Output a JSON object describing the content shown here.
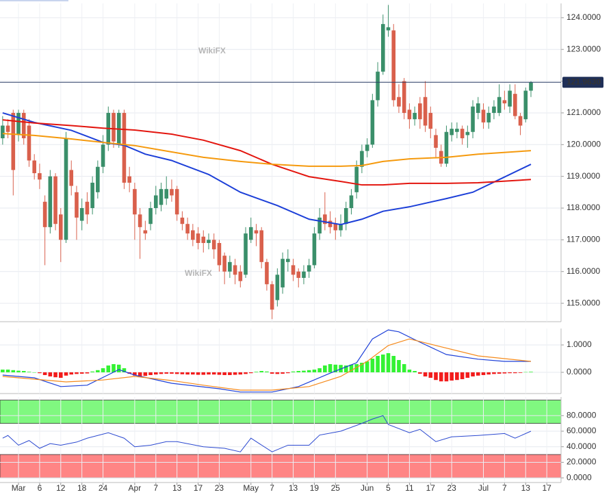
{
  "chart_data": [
    {
      "type": "candlestick",
      "watermark": "WikiFX",
      "xlim": [
        -3.5,
        102.7
      ],
      "ylim": [
        114.42,
        124.45
      ],
      "yticks": [
        {
          "value": 124,
          "label": "124.0000"
        },
        {
          "value": 123,
          "label": "123.0000"
        },
        {
          "value": 122,
          "label": "122.0000"
        },
        {
          "value": 121,
          "label": "121.0000"
        },
        {
          "value": 120,
          "label": "120.0000"
        },
        {
          "value": 119,
          "label": "119.0000"
        },
        {
          "value": 118,
          "label": "118.0000"
        },
        {
          "value": 117,
          "label": "117.0000"
        },
        {
          "value": 116,
          "label": "116.0000"
        },
        {
          "value": 115,
          "label": "115.0000"
        }
      ],
      "up_color": "#3a8f6a",
      "down_color": "#d9604c",
      "last_price": {
        "value": 121.963,
        "label": "121.9630"
      },
      "x": [
        -3,
        -2,
        -1,
        0,
        1,
        2,
        3,
        4,
        5,
        6,
        7,
        8,
        9,
        10,
        11,
        12,
        13,
        14,
        15,
        16,
        17,
        18,
        19,
        20,
        21,
        22,
        23,
        24,
        25,
        26,
        27,
        28,
        29,
        30,
        31,
        32,
        33,
        34,
        35,
        36,
        37,
        38,
        39,
        40,
        41,
        42,
        43,
        44,
        45,
        46,
        47,
        48,
        49,
        50,
        51,
        52,
        53,
        54,
        55,
        56,
        57,
        58,
        59,
        60,
        61,
        62,
        63,
        64,
        65,
        66,
        67,
        68,
        69,
        70,
        71,
        72,
        73,
        74,
        75,
        76,
        77,
        78,
        79,
        80,
        81,
        82,
        83,
        84,
        85,
        86,
        87,
        88,
        89,
        90,
        91,
        92,
        93,
        94,
        95,
        96,
        97
      ],
      "open": [
        120.2,
        120.6,
        121.0,
        120.3,
        121.0,
        120.6,
        119.5,
        119.1,
        118.2,
        117.4,
        119.0,
        117.8,
        117.0,
        119.2,
        118.5,
        117.6,
        118.2,
        118.0,
        118.5,
        119.3,
        120.0,
        121.0,
        120.0,
        121.0,
        119.0,
        118.6,
        117.8,
        117.3,
        117.5,
        118.0,
        118.1,
        118.3,
        118.6,
        118.6,
        117.7,
        117.5,
        117.3,
        117.2,
        117.1,
        116.9,
        117.0,
        116.9,
        116.5,
        116.0,
        116.2,
        116.0,
        115.9,
        117.0,
        117.3,
        117.3,
        116.3,
        115.6,
        115.1,
        115.5,
        116.3,
        116.2,
        116.0,
        115.8,
        116.0,
        116.2,
        117.2,
        117.8,
        117.6,
        117.5,
        117.3,
        117.5,
        118.0,
        118.5,
        119.3,
        119.8,
        120.0,
        121.4,
        122.3,
        123.6,
        123.6,
        121.5,
        122.0,
        121.1,
        120.8,
        121.3,
        121.5,
        121.0,
        120.3,
        119.8,
        119.4,
        120.3,
        120.4,
        120.5,
        120.3,
        120.4,
        121.0,
        121.1,
        120.7,
        121.0,
        121.0,
        121.4,
        121.2,
        121.6,
        120.9,
        120.8,
        121.7
      ],
      "high": [
        120.9,
        120.8,
        121.1,
        121.1,
        121.1,
        120.8,
        119.7,
        119.4,
        118.4,
        119.2,
        119.1,
        118.0,
        120.4,
        119.5,
        118.7,
        118.3,
        118.5,
        119.0,
        119.5,
        120.3,
        121.2,
        121.1,
        121.1,
        121.1,
        119.3,
        118.8,
        118.0,
        117.6,
        118.2,
        118.7,
        118.8,
        119.0,
        118.9,
        118.7,
        117.9,
        117.7,
        117.5,
        117.4,
        117.3,
        117.2,
        117.2,
        117.0,
        116.6,
        116.5,
        116.4,
        116.2,
        117.4,
        117.7,
        117.5,
        117.4,
        116.4,
        115.7,
        116.1,
        116.6,
        116.7,
        116.4,
        116.1,
        116.2,
        116.4,
        117.4,
        118.0,
        118.5,
        117.9,
        117.7,
        117.8,
        118.2,
        118.6,
        119.5,
        120.0,
        120.2,
        121.6,
        122.6,
        124.1,
        124.4,
        123.8,
        121.9,
        122.1,
        121.3,
        121.2,
        121.5,
        122.0,
        121.2,
        120.5,
        120.0,
        120.6,
        120.7,
        120.7,
        120.6,
        120.6,
        121.4,
        121.5,
        121.3,
        121.2,
        121.4,
        121.9,
        121.7,
        121.9,
        121.9,
        121.0,
        121.8,
        122.0
      ],
      "low": [
        120.0,
        120.2,
        118.4,
        120.1,
        120.0,
        119.3,
        118.9,
        118.6,
        116.2,
        117.2,
        117.3,
        116.3,
        116.9,
        118.4,
        117.0,
        117.3,
        117.5,
        117.8,
        118.3,
        119.1,
        119.8,
        119.9,
        119.9,
        118.6,
        118.5,
        117.0,
        116.4,
        117.0,
        117.3,
        117.8,
        117.9,
        118.1,
        118.2,
        117.6,
        117.3,
        117.0,
        116.8,
        116.7,
        116.6,
        116.7,
        116.4,
        116.0,
        115.6,
        115.8,
        115.6,
        115.5,
        115.8,
        116.9,
        116.8,
        116.1,
        115.4,
        114.5,
        114.9,
        115.3,
        116.0,
        115.7,
        115.5,
        115.6,
        115.8,
        116.1,
        117.0,
        117.3,
        117.2,
        117.0,
        117.1,
        117.3,
        117.8,
        118.3,
        119.1,
        119.6,
        119.9,
        121.2,
        122.2,
        123.4,
        121.2,
        121.0,
        120.8,
        120.5,
        120.6,
        120.5,
        120.4,
        120.2,
        119.6,
        119.3,
        119.3,
        120.1,
        120.2,
        120.0,
        119.9,
        120.2,
        120.8,
        120.5,
        120.5,
        120.8,
        120.9,
        121.1,
        121.0,
        120.8,
        120.3,
        120.7,
        121.5
      ],
      "close": [
        120.6,
        120.4,
        119.2,
        121.0,
        120.2,
        119.5,
        119.1,
        118.9,
        117.4,
        119.0,
        117.5,
        117.0,
        120.2,
        118.7,
        117.7,
        118.0,
        117.8,
        118.8,
        119.3,
        120.0,
        121.0,
        120.1,
        121.0,
        118.8,
        118.8,
        117.8,
        117.4,
        117.2,
        118.0,
        118.4,
        118.6,
        118.6,
        118.4,
        117.8,
        117.5,
        117.2,
        117.0,
        116.9,
        116.9,
        117.0,
        116.7,
        116.2,
        116.0,
        116.3,
        115.9,
        115.7,
        117.2,
        117.4,
        117.2,
        116.3,
        115.6,
        114.8,
        115.9,
        116.4,
        116.4,
        115.9,
        115.8,
        116.0,
        116.2,
        117.2,
        117.7,
        117.5,
        117.4,
        117.3,
        117.5,
        118.0,
        118.4,
        119.3,
        119.8,
        120.0,
        121.4,
        122.3,
        123.8,
        123.7,
        121.4,
        121.2,
        121.0,
        120.8,
        121.0,
        120.8,
        120.6,
        120.5,
        119.9,
        119.4,
        120.4,
        120.5,
        120.5,
        120.2,
        120.4,
        121.2,
        121.3,
        120.7,
        121.0,
        121.2,
        121.5,
        121.3,
        121.7,
        120.9,
        120.6,
        121.7,
        121.963
      ],
      "lines": [
        {
          "color": "#1c3fd8",
          "x": [
            -3,
            3,
            10,
            16,
            20,
            24,
            29,
            36,
            42,
            49,
            55,
            61,
            65,
            69,
            74,
            81,
            86,
            91,
            97
          ],
          "values": [
            121.0,
            120.7,
            120.45,
            120.07,
            119.98,
            119.7,
            119.5,
            119.06,
            118.5,
            118.08,
            117.65,
            117.48,
            117.65,
            117.9,
            118.04,
            118.3,
            118.5,
            118.9,
            119.38
          ]
        },
        {
          "color": "#e3150e",
          "x": [
            -3,
            3,
            10,
            16,
            22,
            29,
            35,
            42,
            48,
            55,
            61,
            65,
            69,
            74,
            81,
            87,
            97
          ],
          "values": [
            120.78,
            120.68,
            120.6,
            120.52,
            120.46,
            120.33,
            120.14,
            119.81,
            119.38,
            118.99,
            118.84,
            118.73,
            118.73,
            118.78,
            118.78,
            118.8,
            118.9
          ]
        },
        {
          "color": "#f5990c",
          "x": [
            -3,
            3,
            10,
            16,
            22,
            29,
            35,
            42,
            48,
            55,
            61,
            65,
            69,
            74,
            81,
            87,
            97
          ],
          "values": [
            120.35,
            120.29,
            120.18,
            120.07,
            119.97,
            119.77,
            119.6,
            119.47,
            119.38,
            119.32,
            119.32,
            119.34,
            119.47,
            119.55,
            119.6,
            119.7,
            119.81
          ]
        }
      ]
    },
    {
      "type": "bar",
      "xlim": [
        -3.5,
        102.7
      ],
      "ylim": [
        -0.775,
        1.6
      ],
      "yticks": [
        {
          "value": 1,
          "label": "1.0000"
        },
        {
          "value": 0,
          "label": "0.0000"
        }
      ],
      "up_color": "#33f233",
      "down_color": "#f21c1c",
      "x": [
        -3,
        -2,
        -1,
        0,
        1,
        2,
        3,
        4,
        5,
        6,
        7,
        8,
        9,
        10,
        11,
        12,
        13,
        14,
        15,
        16,
        17,
        18,
        19,
        20,
        21,
        22,
        23,
        24,
        25,
        26,
        27,
        28,
        29,
        30,
        31,
        32,
        33,
        34,
        35,
        36,
        37,
        38,
        39,
        40,
        41,
        42,
        43,
        44,
        45,
        46,
        47,
        48,
        49,
        50,
        51,
        52,
        53,
        54,
        55,
        56,
        57,
        58,
        59,
        60,
        61,
        62,
        63,
        64,
        65,
        66,
        67,
        68,
        69,
        70,
        71,
        72,
        73,
        74,
        75,
        76,
        77,
        78,
        79,
        80,
        81,
        82,
        83,
        84,
        85,
        86,
        87,
        88,
        89,
        90,
        91,
        92,
        93,
        94,
        95,
        96,
        97
      ],
      "values": [
        0.1,
        0.1,
        0.08,
        0.06,
        0.05,
        0.02,
        0,
        -0.03,
        -0.1,
        -0.15,
        -0.18,
        -0.2,
        -0.12,
        -0.08,
        -0.06,
        -0.05,
        -0.04,
        0.03,
        0.08,
        0.15,
        0.25,
        0.3,
        0.28,
        0.15,
        -0.05,
        -0.12,
        -0.15,
        -0.13,
        -0.1,
        -0.08,
        -0.06,
        -0.05,
        -0.05,
        -0.06,
        -0.07,
        -0.08,
        -0.08,
        -0.09,
        -0.09,
        -0.08,
        -0.08,
        -0.09,
        -0.1,
        -0.1,
        -0.09,
        -0.08,
        -0.06,
        -0.03,
        0.02,
        0.05,
        0.03,
        -0.05,
        -0.06,
        -0.05,
        -0.03,
        0.03,
        0.05,
        0.06,
        0.08,
        0.1,
        0.15,
        0.25,
        0.3,
        0.28,
        0.27,
        0.25,
        0.28,
        0.3,
        0.35,
        0.4,
        0.5,
        0.6,
        0.65,
        0.7,
        0.6,
        0.45,
        0.3,
        0.1,
        0.05,
        -0.05,
        -0.15,
        -0.2,
        -0.28,
        -0.33,
        -0.33,
        -0.3,
        -0.28,
        -0.25,
        -0.2,
        -0.15,
        -0.12,
        -0.1,
        -0.08,
        -0.06,
        -0.05,
        -0.04,
        -0.03,
        -0.03,
        -0.02,
        0.01,
        0.02
      ],
      "lines": [
        {
          "color": "#1c3fd8",
          "x": [
            -3,
            3,
            8,
            13,
            19,
            22,
            29,
            38,
            42,
            48,
            53,
            59,
            64,
            67,
            70,
            72,
            76,
            81,
            87,
            92,
            97
          ],
          "values": [
            -0.1,
            -0.2,
            -0.52,
            -0.47,
            0.1,
            -0.1,
            -0.4,
            -0.6,
            -0.72,
            -0.72,
            -0.52,
            -0.03,
            0.35,
            1.22,
            1.55,
            1.48,
            1.1,
            0.65,
            0.48,
            0.4,
            0.4
          ]
        },
        {
          "color": "#f5891a",
          "x": [
            -3,
            3,
            9,
            16,
            22,
            29,
            35,
            42,
            48,
            55,
            61,
            66,
            70,
            74,
            79,
            87,
            97
          ],
          "values": [
            -0.15,
            -0.25,
            -0.35,
            -0.28,
            -0.15,
            -0.3,
            -0.47,
            -0.65,
            -0.65,
            -0.52,
            -0.15,
            0.4,
            0.98,
            1.22,
            0.98,
            0.6,
            0.4
          ]
        }
      ]
    },
    {
      "type": "line",
      "xlim": [
        -3.5,
        102.7
      ],
      "ylim": [
        -6,
        104
      ],
      "yticks": [
        {
          "value": 80,
          "label": "80.0000"
        },
        {
          "value": 60,
          "label": "60.0000"
        },
        {
          "value": 40,
          "label": "40.0000"
        },
        {
          "value": 20,
          "label": "20.0000"
        },
        {
          "value": 0,
          "label": "0.0000"
        }
      ],
      "zones": [
        {
          "from": 70,
          "to": 100,
          "color": "#80f880"
        },
        {
          "from": 0,
          "to": 30,
          "color": "#ff8585"
        }
      ],
      "color": "#2a48d0",
      "x": [
        -3,
        -2,
        0,
        2,
        4,
        6,
        8,
        11,
        13,
        17,
        20,
        22,
        25,
        28,
        30,
        35,
        39,
        42,
        44,
        48,
        51,
        55,
        57,
        61,
        65,
        67,
        69,
        70,
        74,
        76,
        79,
        82,
        87,
        92,
        94,
        97
      ],
      "values": [
        51,
        54.5,
        42,
        48,
        38,
        44,
        42,
        46,
        51,
        58,
        51,
        40,
        42,
        46.6,
        46.6,
        40,
        38,
        33.4,
        51,
        33.4,
        42,
        42,
        55,
        60,
        70,
        75.6,
        80,
        68.6,
        58,
        62.4,
        46.6,
        52.7,
        54.5,
        57,
        51,
        60
      ],
      "xticks": [
        {
          "value": 0,
          "label": "Mar"
        },
        {
          "value": 4,
          "label": "6"
        },
        {
          "value": 8,
          "label": "12"
        },
        {
          "value": 12,
          "label": "18"
        },
        {
          "value": 16,
          "label": "24"
        },
        {
          "value": 22,
          "label": "Apr"
        },
        {
          "value": 26,
          "label": "7"
        },
        {
          "value": 30,
          "label": "13"
        },
        {
          "value": 34,
          "label": "17"
        },
        {
          "value": 38,
          "label": "23"
        },
        {
          "value": 44,
          "label": "May"
        },
        {
          "value": 48,
          "label": "7"
        },
        {
          "value": 52,
          "label": "13"
        },
        {
          "value": 56,
          "label": "19"
        },
        {
          "value": 60,
          "label": "25"
        },
        {
          "value": 66,
          "label": "Jun"
        },
        {
          "value": 70,
          "label": "5"
        },
        {
          "value": 74,
          "label": "11"
        },
        {
          "value": 78,
          "label": "17"
        },
        {
          "value": 82,
          "label": "23"
        },
        {
          "value": 88,
          "label": "Jul"
        },
        {
          "value": 92,
          "label": "7"
        },
        {
          "value": 96,
          "label": "13"
        },
        {
          "value": 100,
          "label": "17"
        }
      ]
    }
  ]
}
